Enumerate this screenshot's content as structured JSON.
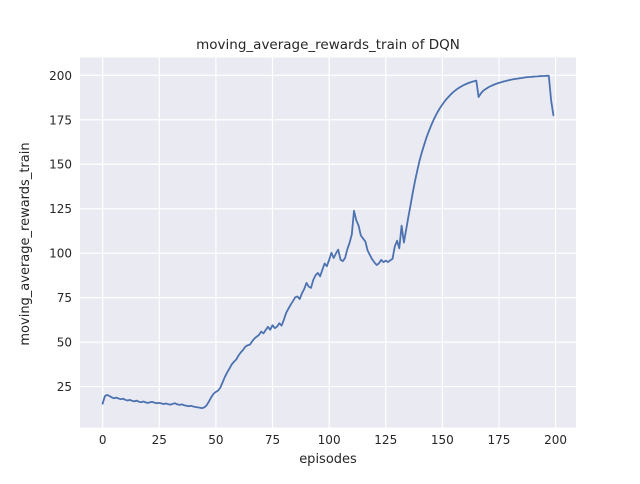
{
  "figure": {
    "title": "moving_average_rewards_train of DQN",
    "xlabel": "episodes",
    "ylabel": "moving_average_rewards_train"
  },
  "chart_data": {
    "type": "line",
    "title": "moving_average_rewards_train of DQN",
    "xlabel": "episodes",
    "ylabel": "moving_average_rewards_train",
    "xlim": [
      -10,
      209
    ],
    "ylim": [
      2,
      210
    ],
    "xticks": [
      0,
      25,
      50,
      75,
      100,
      125,
      150,
      175,
      200
    ],
    "yticks": [
      25,
      50,
      75,
      100,
      125,
      150,
      175,
      200
    ],
    "grid": true,
    "legend_position": "none",
    "plot_background": "#eaeaf2",
    "grid_color": "#ffffff",
    "text_color": "#262626",
    "series": [
      {
        "name": "moving_average_rewards_train",
        "color": "#4c72b0",
        "points": [
          [
            0,
            15.4
          ],
          [
            1,
            19.6
          ],
          [
            2,
            20.3
          ],
          [
            3,
            19.7
          ],
          [
            4,
            19.0
          ],
          [
            5,
            18.4
          ],
          [
            6,
            18.8
          ],
          [
            7,
            18.3
          ],
          [
            8,
            17.9
          ],
          [
            9,
            18.2
          ],
          [
            10,
            17.6
          ],
          [
            11,
            17.2
          ],
          [
            12,
            17.5
          ],
          [
            13,
            17.0
          ],
          [
            14,
            16.7
          ],
          [
            15,
            17.1
          ],
          [
            16,
            16.5
          ],
          [
            17,
            16.2
          ],
          [
            18,
            16.6
          ],
          [
            19,
            16.1
          ],
          [
            20,
            15.8
          ],
          [
            21,
            16.2
          ],
          [
            22,
            16.4
          ],
          [
            23,
            15.9
          ],
          [
            24,
            15.6
          ],
          [
            25,
            15.9
          ],
          [
            26,
            15.5
          ],
          [
            27,
            15.2
          ],
          [
            28,
            15.5
          ],
          [
            29,
            15.1
          ],
          [
            30,
            14.9
          ],
          [
            31,
            15.3
          ],
          [
            32,
            15.6
          ],
          [
            33,
            15.0
          ],
          [
            34,
            14.7
          ],
          [
            35,
            15.0
          ],
          [
            36,
            14.5
          ],
          [
            37,
            14.2
          ],
          [
            38,
            13.9
          ],
          [
            39,
            14.2
          ],
          [
            40,
            13.8
          ],
          [
            41,
            13.5
          ],
          [
            42,
            13.3
          ],
          [
            43,
            13.1
          ],
          [
            44,
            12.9
          ],
          [
            45,
            13.4
          ],
          [
            46,
            14.6
          ],
          [
            47,
            16.8
          ],
          [
            48,
            19.2
          ],
          [
            49,
            21.0
          ],
          [
            50,
            22.0
          ],
          [
            51,
            22.8
          ],
          [
            52,
            24.5
          ],
          [
            53,
            27.5
          ],
          [
            54,
            30.5
          ],
          [
            55,
            33.0
          ],
          [
            56,
            35.2
          ],
          [
            57,
            37.4
          ],
          [
            58,
            39.0
          ],
          [
            59,
            40.3
          ],
          [
            60,
            42.5
          ],
          [
            61,
            44.2
          ],
          [
            62,
            45.6
          ],
          [
            63,
            47.4
          ],
          [
            64,
            48.2
          ],
          [
            65,
            48.6
          ],
          [
            66,
            50.4
          ],
          [
            67,
            52.0
          ],
          [
            68,
            53.1
          ],
          [
            69,
            54.0
          ],
          [
            70,
            55.9
          ],
          [
            71,
            54.9
          ],
          [
            72,
            56.8
          ],
          [
            73,
            58.6
          ],
          [
            74,
            56.9
          ],
          [
            75,
            59.5
          ],
          [
            76,
            57.8
          ],
          [
            77,
            58.7
          ],
          [
            78,
            60.6
          ],
          [
            79,
            59.3
          ],
          [
            80,
            62.5
          ],
          [
            81,
            66.3
          ],
          [
            82,
            68.8
          ],
          [
            83,
            71.0
          ],
          [
            84,
            73.0
          ],
          [
            85,
            75.2
          ],
          [
            86,
            75.7
          ],
          [
            87,
            74.2
          ],
          [
            88,
            77.5
          ],
          [
            89,
            79.8
          ],
          [
            90,
            83.3
          ],
          [
            91,
            81.2
          ],
          [
            92,
            80.5
          ],
          [
            93,
            85.0
          ],
          [
            94,
            87.5
          ],
          [
            95,
            88.9
          ],
          [
            96,
            87.0
          ],
          [
            97,
            90.6
          ],
          [
            98,
            94.2
          ],
          [
            99,
            92.7
          ],
          [
            100,
            96.2
          ],
          [
            101,
            100.2
          ],
          [
            102,
            97.3
          ],
          [
            103,
            99.8
          ],
          [
            104,
            102.0
          ],
          [
            105,
            96.4
          ],
          [
            106,
            95.5
          ],
          [
            107,
            97.2
          ],
          [
            108,
            102.2
          ],
          [
            109,
            105.8
          ],
          [
            110,
            110.5
          ],
          [
            111,
            123.8
          ],
          [
            112,
            118.5
          ],
          [
            113,
            115.5
          ],
          [
            114,
            110.0
          ],
          [
            115,
            108.2
          ],
          [
            116,
            106.5
          ],
          [
            117,
            101.5
          ],
          [
            118,
            99.0
          ],
          [
            119,
            96.5
          ],
          [
            120,
            94.8
          ],
          [
            121,
            93.3
          ],
          [
            122,
            94.3
          ],
          [
            123,
            96.2
          ],
          [
            124,
            95.0
          ],
          [
            125,
            95.8
          ],
          [
            126,
            95.0
          ],
          [
            127,
            96.0
          ],
          [
            128,
            96.8
          ],
          [
            129,
            103.8
          ],
          [
            130,
            107.0
          ],
          [
            131,
            102.8
          ],
          [
            132,
            115.5
          ],
          [
            133,
            106.0
          ],
          [
            134,
            113.0
          ],
          [
            135,
            120.5
          ],
          [
            136,
            127.5
          ],
          [
            137,
            134.5
          ],
          [
            138,
            141.0
          ],
          [
            139,
            147.0
          ],
          [
            140,
            152.3
          ],
          [
            141,
            157.0
          ],
          [
            142,
            161.2
          ],
          [
            143,
            165.0
          ],
          [
            144,
            168.5
          ],
          [
            145,
            171.7
          ],
          [
            146,
            174.6
          ],
          [
            147,
            177.2
          ],
          [
            148,
            179.6
          ],
          [
            149,
            181.7
          ],
          [
            150,
            183.6
          ],
          [
            151,
            185.3
          ],
          [
            152,
            186.9
          ],
          [
            153,
            188.3
          ],
          [
            154,
            189.6
          ],
          [
            155,
            190.8
          ],
          [
            156,
            191.8
          ],
          [
            157,
            192.7
          ],
          [
            158,
            193.5
          ],
          [
            159,
            194.2
          ],
          [
            160,
            194.8
          ],
          [
            161,
            195.4
          ],
          [
            162,
            195.9
          ],
          [
            163,
            196.3
          ],
          [
            164,
            196.7
          ],
          [
            165,
            197.0
          ],
          [
            166,
            187.8
          ],
          [
            167,
            189.8
          ],
          [
            168,
            191.2
          ],
          [
            169,
            192.2
          ],
          [
            170,
            193.0
          ],
          [
            171,
            193.7
          ],
          [
            172,
            194.3
          ],
          [
            173,
            194.8
          ],
          [
            174,
            195.3
          ],
          [
            175,
            195.7
          ],
          [
            176,
            196.1
          ],
          [
            177,
            196.5
          ],
          [
            178,
            196.8
          ],
          [
            179,
            197.1
          ],
          [
            180,
            197.4
          ],
          [
            181,
            197.7
          ],
          [
            182,
            197.9
          ],
          [
            183,
            198.1
          ],
          [
            184,
            198.3
          ],
          [
            185,
            198.5
          ],
          [
            186,
            198.7
          ],
          [
            187,
            198.9
          ],
          [
            188,
            199.0
          ],
          [
            189,
            199.1
          ],
          [
            190,
            199.2
          ],
          [
            191,
            199.3
          ],
          [
            192,
            199.4
          ],
          [
            193,
            199.5
          ],
          [
            194,
            199.6
          ],
          [
            195,
            199.6
          ],
          [
            196,
            199.7
          ],
          [
            197,
            199.7
          ],
          [
            198,
            186.0
          ],
          [
            199,
            177.5
          ]
        ]
      }
    ]
  }
}
